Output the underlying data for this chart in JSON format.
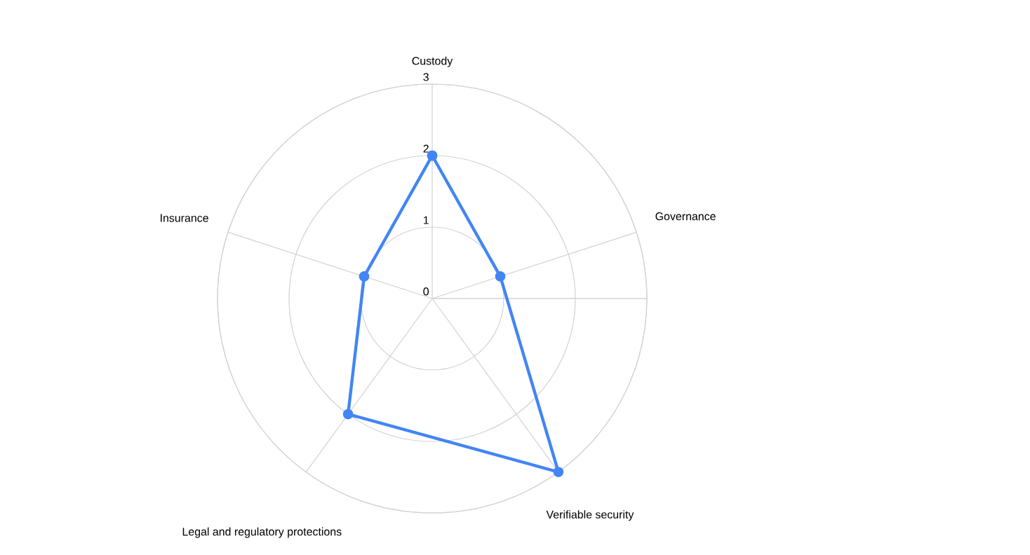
{
  "chart_data": {
    "type": "radar",
    "categories": [
      "Custody",
      "Governance",
      "Verifiable security",
      "Legal and regulatory protections",
      "Insurance"
    ],
    "series": [
      {
        "color": "#4285f4",
        "values": [
          2,
          1,
          3,
          2,
          1
        ]
      }
    ],
    "ylim": [
      0,
      3
    ],
    "yticks": [
      0,
      1,
      2,
      3
    ],
    "grid": true,
    "marker": "circle"
  }
}
